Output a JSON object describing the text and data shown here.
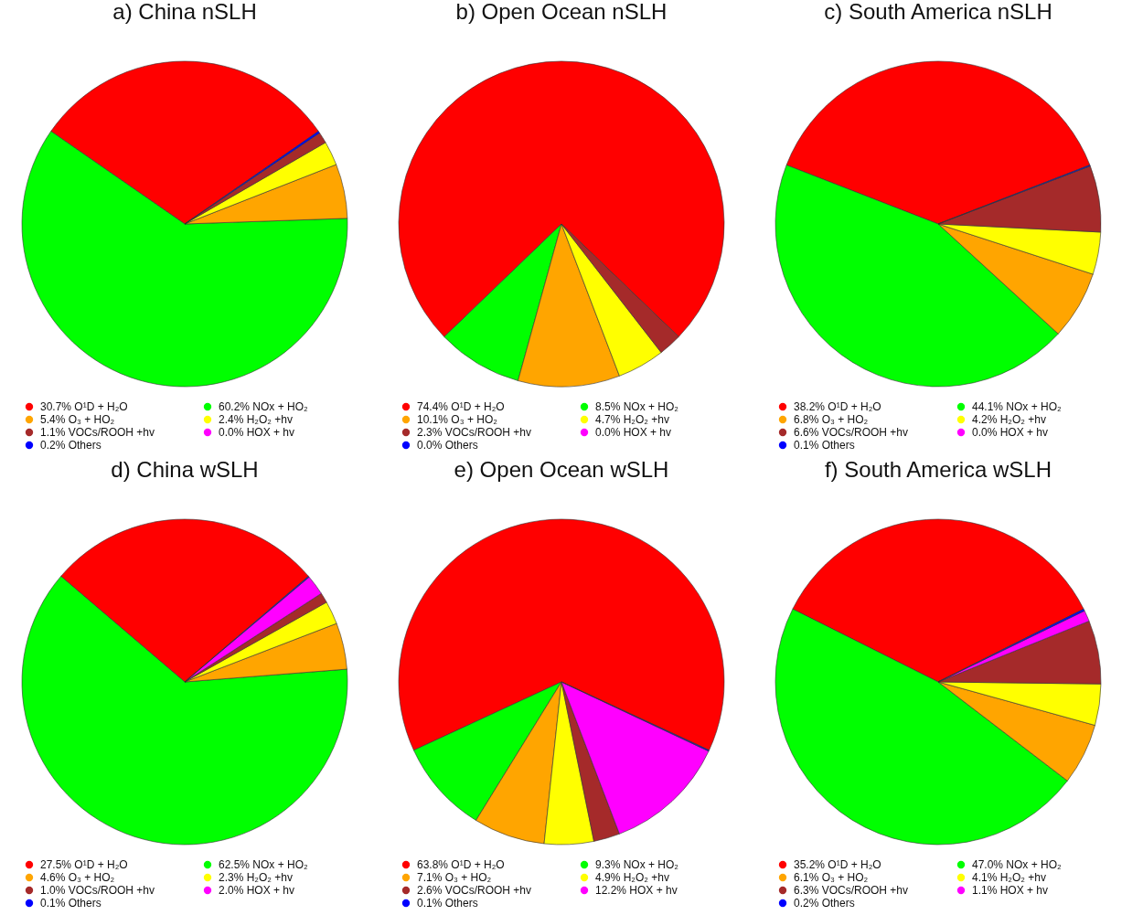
{
  "chart_data": [
    {
      "type": "pie",
      "title": "a)  China nSLH",
      "categories": [
        "30.7% O¹D + H₂O",
        "60.2% NOx + HO₂",
        "5.4% O₃ + HO₂",
        "2.4% H₂O₂ +hv",
        "1.1% VOCs/ROOH  +hv",
        "0.0% HOX + hv",
        "0.2% Others"
      ],
      "values": [
        30.7,
        60.2,
        5.4,
        2.4,
        1.1,
        0.0,
        0.2
      ],
      "colors": [
        "#ff0000",
        "#00ff00",
        "#ffa500",
        "#ffff00",
        "#a52a2a",
        "#ff00ff",
        "#0000ff"
      ],
      "legend": "bottom"
    },
    {
      "type": "pie",
      "title": "b)  Open Ocean nSLH",
      "categories": [
        "74.4% O¹D + H₂O",
        "8.5% NOx + HO₂",
        "10.1% O₃ + HO₂",
        "4.7% H₂O₂ +hv",
        "2.3% VOCs/ROOH  +hv",
        "0.0% HOX + hv",
        "0.0% Others"
      ],
      "values": [
        74.4,
        8.5,
        10.1,
        4.7,
        2.3,
        0.0,
        0.0
      ],
      "colors": [
        "#ff0000",
        "#00ff00",
        "#ffa500",
        "#ffff00",
        "#a52a2a",
        "#ff00ff",
        "#0000ff"
      ],
      "legend": "bottom"
    },
    {
      "type": "pie",
      "title": "c)  South America nSLH",
      "categories": [
        "38.2% O¹D + H₂O",
        "44.1% NOx + HO₂",
        "6.8% O₃ + HO₂",
        "4.2% H₂O₂ +hv",
        "6.6% VOCs/ROOH  +hv",
        "0.0% HOX + hv",
        "0.1% Others"
      ],
      "values": [
        38.2,
        44.1,
        6.8,
        4.2,
        6.6,
        0.0,
        0.1
      ],
      "colors": [
        "#ff0000",
        "#00ff00",
        "#ffa500",
        "#ffff00",
        "#a52a2a",
        "#ff00ff",
        "#0000ff"
      ],
      "legend": "bottom"
    },
    {
      "type": "pie",
      "title": "d)  China wSLH",
      "categories": [
        "27.5% O¹D + H₂O",
        "62.5% NOx + HO₂",
        "4.6% O₃ + HO₂",
        "2.3% H₂O₂ +hv",
        "1.0% VOCs/ROOH  +hv",
        "2.0% HOX + hv",
        "0.1% Others"
      ],
      "values": [
        27.5,
        62.5,
        4.6,
        2.3,
        1.0,
        2.0,
        0.1
      ],
      "colors": [
        "#ff0000",
        "#00ff00",
        "#ffa500",
        "#ffff00",
        "#a52a2a",
        "#ff00ff",
        "#0000ff"
      ],
      "legend": "bottom"
    },
    {
      "type": "pie",
      "title": "e)  Open Ocean wSLH",
      "categories": [
        "63.8% O¹D + H₂O",
        "9.3% NOx + HO₂",
        "7.1% O₃ + HO₂",
        "4.9% H₂O₂ +hv",
        "2.6% VOCs/ROOH  +hv",
        "12.2% HOX + hv",
        "0.1% Others"
      ],
      "values": [
        63.8,
        9.3,
        7.1,
        4.9,
        2.6,
        12.2,
        0.1
      ],
      "colors": [
        "#ff0000",
        "#00ff00",
        "#ffa500",
        "#ffff00",
        "#a52a2a",
        "#ff00ff",
        "#0000ff"
      ],
      "legend": "bottom"
    },
    {
      "type": "pie",
      "title": "f)  South America wSLH",
      "categories": [
        "35.2% O¹D + H₂O",
        "47.0% NOx + HO₂",
        "6.1% O₃ + HO₂",
        "4.1% H₂O₂ +hv",
        "6.3% VOCs/ROOH  +hv",
        "1.1% HOX + hv",
        "0.2% Others"
      ],
      "values": [
        35.2,
        47.0,
        6.1,
        4.1,
        6.3,
        1.1,
        0.2
      ],
      "colors": [
        "#ff0000",
        "#00ff00",
        "#ffa500",
        "#ffff00",
        "#a52a2a",
        "#ff00ff",
        "#0000ff"
      ],
      "legend": "bottom"
    }
  ]
}
